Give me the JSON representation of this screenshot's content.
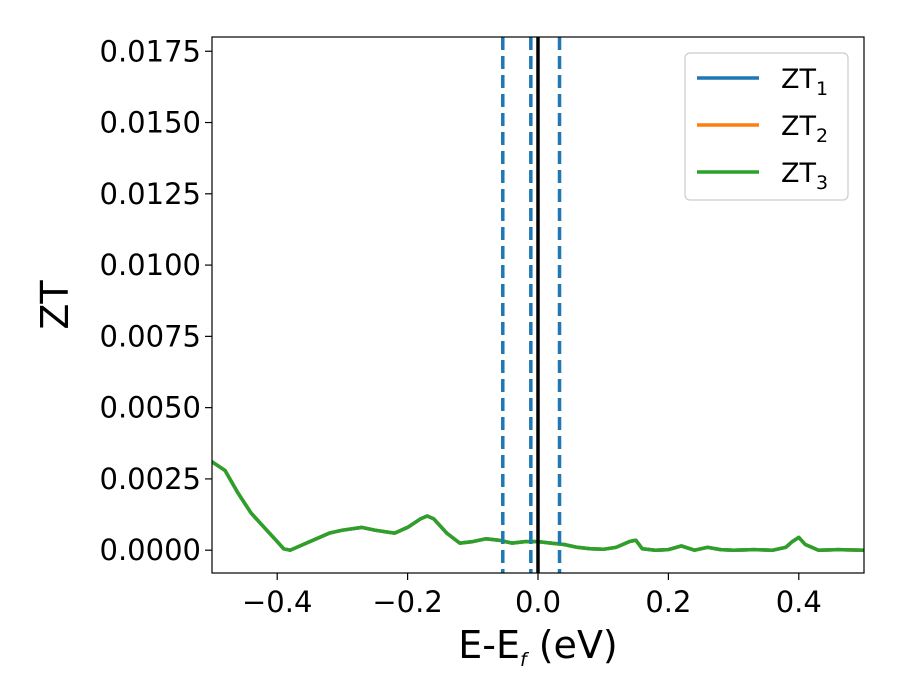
{
  "chart_data": {
    "type": "line",
    "title": "",
    "xlabel": {
      "base": "E-E",
      "sub": "f",
      "tail": " (eV)"
    },
    "ylabel": "ZT",
    "xlim": [
      -0.5,
      0.5
    ],
    "ylim": [
      -0.0008,
      0.018
    ],
    "xticks": [
      {
        "value": -0.4,
        "label": "−0.4"
      },
      {
        "value": -0.2,
        "label": "−0.2"
      },
      {
        "value": 0.0,
        "label": "0.0"
      },
      {
        "value": 0.2,
        "label": "0.2"
      },
      {
        "value": 0.4,
        "label": "0.4"
      }
    ],
    "yticks": [
      {
        "value": 0.0,
        "label": "0.0000"
      },
      {
        "value": 0.0025,
        "label": "0.0025"
      },
      {
        "value": 0.005,
        "label": "0.0050"
      },
      {
        "value": 0.0075,
        "label": "0.0075"
      },
      {
        "value": 0.01,
        "label": "0.0100"
      },
      {
        "value": 0.0125,
        "label": "0.0125"
      },
      {
        "value": 0.015,
        "label": "0.0150"
      },
      {
        "value": 0.0175,
        "label": "0.0175"
      }
    ],
    "grid": false,
    "legend_position": "top-right",
    "series": [
      {
        "base": "ZT",
        "sub": "1",
        "color": "#1f77b4"
      },
      {
        "base": "ZT",
        "sub": "2",
        "color": "#ff7f0e"
      },
      {
        "base": "ZT",
        "sub": "3",
        "color": "#2ca02c"
      }
    ],
    "x": [
      -0.5,
      -0.48,
      -0.46,
      -0.44,
      -0.42,
      -0.4,
      -0.39,
      -0.38,
      -0.37,
      -0.35,
      -0.32,
      -0.3,
      -0.27,
      -0.25,
      -0.22,
      -0.2,
      -0.18,
      -0.17,
      -0.16,
      -0.14,
      -0.12,
      -0.1,
      -0.08,
      -0.06,
      -0.04,
      -0.02,
      0.0,
      0.02,
      0.04,
      0.06,
      0.08,
      0.1,
      0.12,
      0.14,
      0.15,
      0.16,
      0.18,
      0.2,
      0.22,
      0.24,
      0.26,
      0.28,
      0.3,
      0.33,
      0.36,
      0.38,
      0.39,
      0.4,
      0.41,
      0.43,
      0.46,
      0.5
    ],
    "y": [
      0.0031,
      0.0028,
      0.002,
      0.0013,
      0.0008,
      0.0003,
      5e-05,
      0.0,
      0.0001,
      0.0003,
      0.0006,
      0.0007,
      0.0008,
      0.0007,
      0.0006,
      0.0008,
      0.0011,
      0.0012,
      0.0011,
      0.0006,
      0.00025,
      0.0003,
      0.0004,
      0.00035,
      0.00025,
      0.0003,
      0.0003,
      0.00025,
      0.0002,
      0.0001,
      5e-05,
      3e-05,
      0.0001,
      0.0003,
      0.00035,
      5e-05,
      0.0,
      2e-05,
      0.00015,
      0.0,
      0.0001,
      2e-05,
      0.0,
      2e-05,
      0.0,
      0.0001,
      0.0003,
      0.00045,
      0.0002,
      0.0,
      2e-05,
      0.0
    ],
    "vlines": [
      {
        "x": -0.054,
        "color": "#1f77b4",
        "style": "dashed"
      },
      {
        "x": -0.011,
        "color": "#1f77b4",
        "style": "dashed"
      },
      {
        "x": 0.033,
        "color": "#1f77b4",
        "style": "dashed"
      },
      {
        "x": 0.0,
        "color": "#000000",
        "style": "solid"
      }
    ]
  }
}
